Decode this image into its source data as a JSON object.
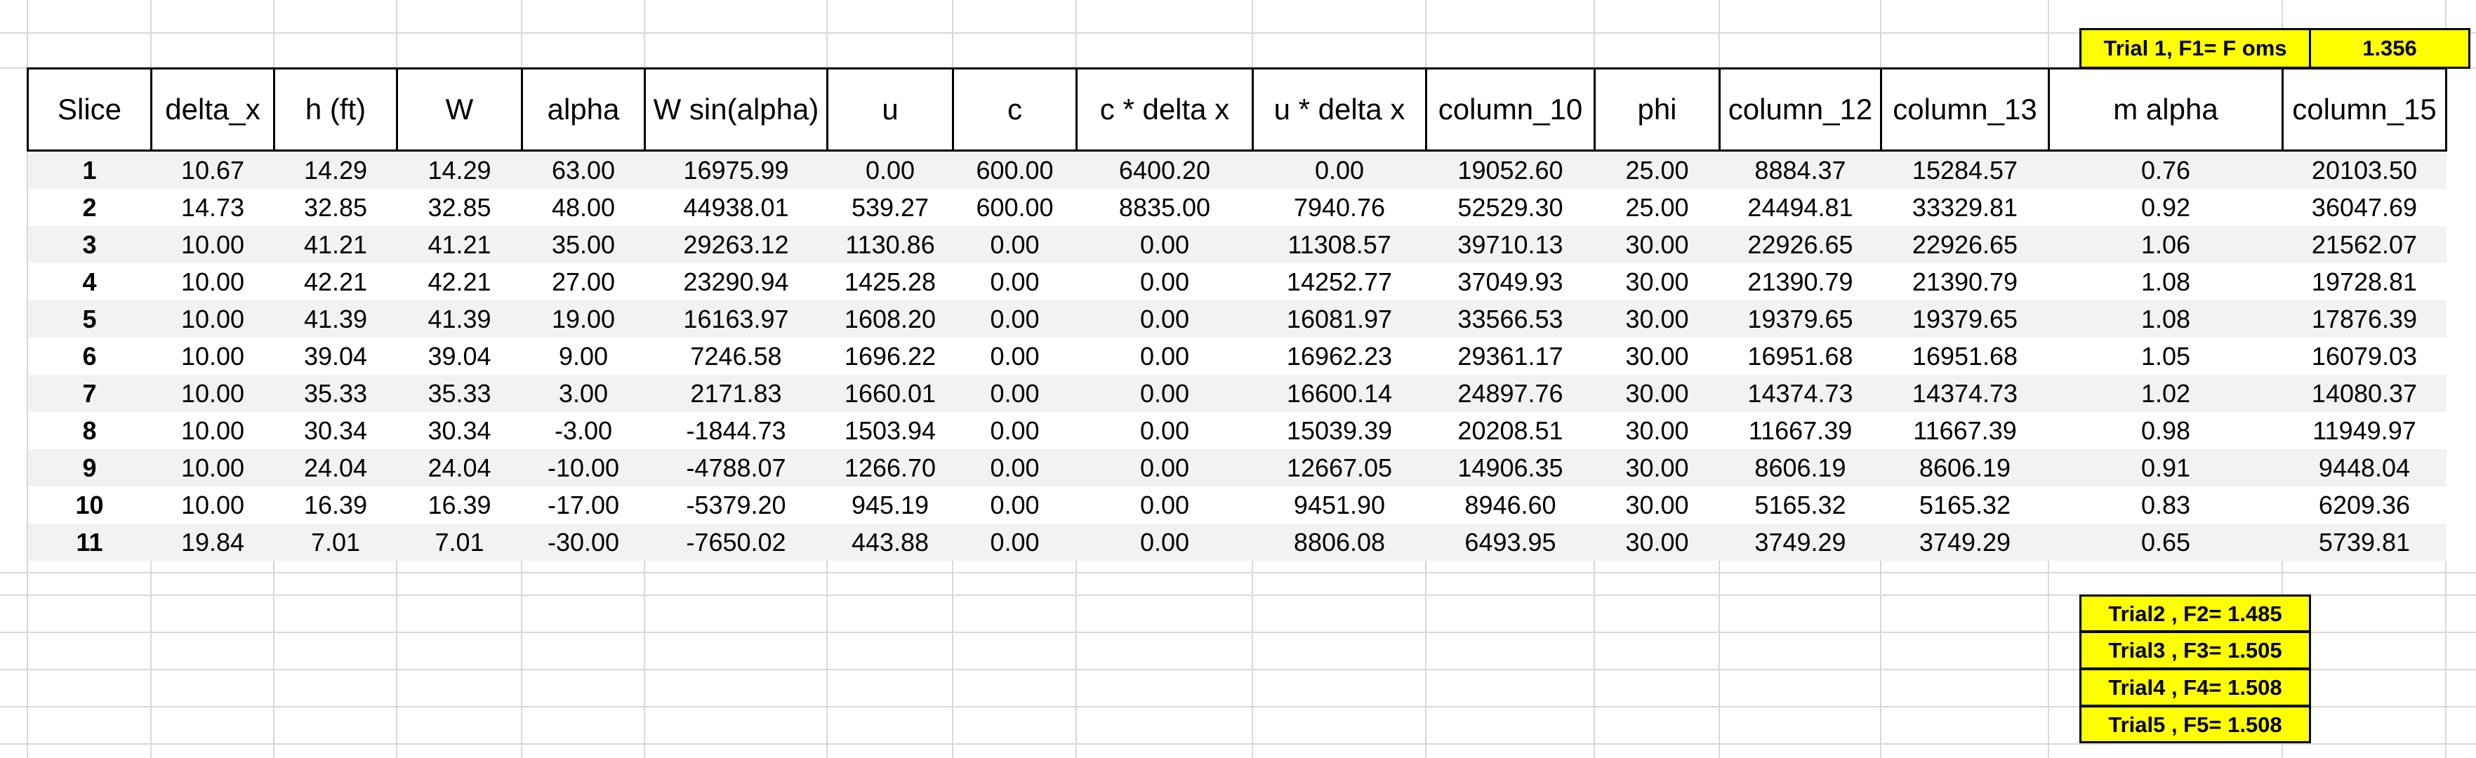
{
  "trial_header": {
    "label": "Trial 1, F1= F oms",
    "value": "1.356"
  },
  "table": {
    "columns": [
      "Slice",
      "delta_x",
      "h (ft)",
      "W",
      "alpha",
      "W sin(alpha)",
      "u",
      "c",
      "c * delta x",
      "u * delta x",
      "column_10",
      "phi",
      "column_12",
      "column_13",
      "m alpha",
      "column_15"
    ],
    "rows": [
      [
        "1",
        "10.67",
        "14.29",
        "14.29",
        "63.00",
        "16975.99",
        "0.00",
        "600.00",
        "6400.20",
        "0.00",
        "19052.60",
        "25.00",
        "8884.37",
        "15284.57",
        "0.76",
        "20103.50"
      ],
      [
        "2",
        "14.73",
        "32.85",
        "32.85",
        "48.00",
        "44938.01",
        "539.27",
        "600.00",
        "8835.00",
        "7940.76",
        "52529.30",
        "25.00",
        "24494.81",
        "33329.81",
        "0.92",
        "36047.69"
      ],
      [
        "3",
        "10.00",
        "41.21",
        "41.21",
        "35.00",
        "29263.12",
        "1130.86",
        "0.00",
        "0.00",
        "11308.57",
        "39710.13",
        "30.00",
        "22926.65",
        "22926.65",
        "1.06",
        "21562.07"
      ],
      [
        "4",
        "10.00",
        "42.21",
        "42.21",
        "27.00",
        "23290.94",
        "1425.28",
        "0.00",
        "0.00",
        "14252.77",
        "37049.93",
        "30.00",
        "21390.79",
        "21390.79",
        "1.08",
        "19728.81"
      ],
      [
        "5",
        "10.00",
        "41.39",
        "41.39",
        "19.00",
        "16163.97",
        "1608.20",
        "0.00",
        "0.00",
        "16081.97",
        "33566.53",
        "30.00",
        "19379.65",
        "19379.65",
        "1.08",
        "17876.39"
      ],
      [
        "6",
        "10.00",
        "39.04",
        "39.04",
        "9.00",
        "7246.58",
        "1696.22",
        "0.00",
        "0.00",
        "16962.23",
        "29361.17",
        "30.00",
        "16951.68",
        "16951.68",
        "1.05",
        "16079.03"
      ],
      [
        "7",
        "10.00",
        "35.33",
        "35.33",
        "3.00",
        "2171.83",
        "1660.01",
        "0.00",
        "0.00",
        "16600.14",
        "24897.76",
        "30.00",
        "14374.73",
        "14374.73",
        "1.02",
        "14080.37"
      ],
      [
        "8",
        "10.00",
        "30.34",
        "30.34",
        "-3.00",
        "-1844.73",
        "1503.94",
        "0.00",
        "0.00",
        "15039.39",
        "20208.51",
        "30.00",
        "11667.39",
        "11667.39",
        "0.98",
        "11949.97"
      ],
      [
        "9",
        "10.00",
        "24.04",
        "24.04",
        "-10.00",
        "-4788.07",
        "1266.70",
        "0.00",
        "0.00",
        "12667.05",
        "14906.35",
        "30.00",
        "8606.19",
        "8606.19",
        "0.91",
        "9448.04"
      ],
      [
        "10",
        "10.00",
        "16.39",
        "16.39",
        "-17.00",
        "-5379.20",
        "945.19",
        "0.00",
        "0.00",
        "9451.90",
        "8946.60",
        "30.00",
        "5165.32",
        "5165.32",
        "0.83",
        "6209.36"
      ],
      [
        "11",
        "19.84",
        "7.01",
        "7.01",
        "-30.00",
        "-7650.02",
        "443.88",
        "0.00",
        "0.00",
        "8806.08",
        "6493.95",
        "30.00",
        "3749.29",
        "3749.29",
        "0.65",
        "5739.81"
      ]
    ]
  },
  "trials": [
    "Trial2 , F2= 1.485",
    "Trial3 , F3= 1.505",
    "Trial4 , F4= 1.508",
    "Trial5 , F5= 1.508"
  ],
  "colors": {
    "highlight": "#ffff00",
    "stripe": "#f2f2f2",
    "gridline": "#d9d9d9"
  }
}
